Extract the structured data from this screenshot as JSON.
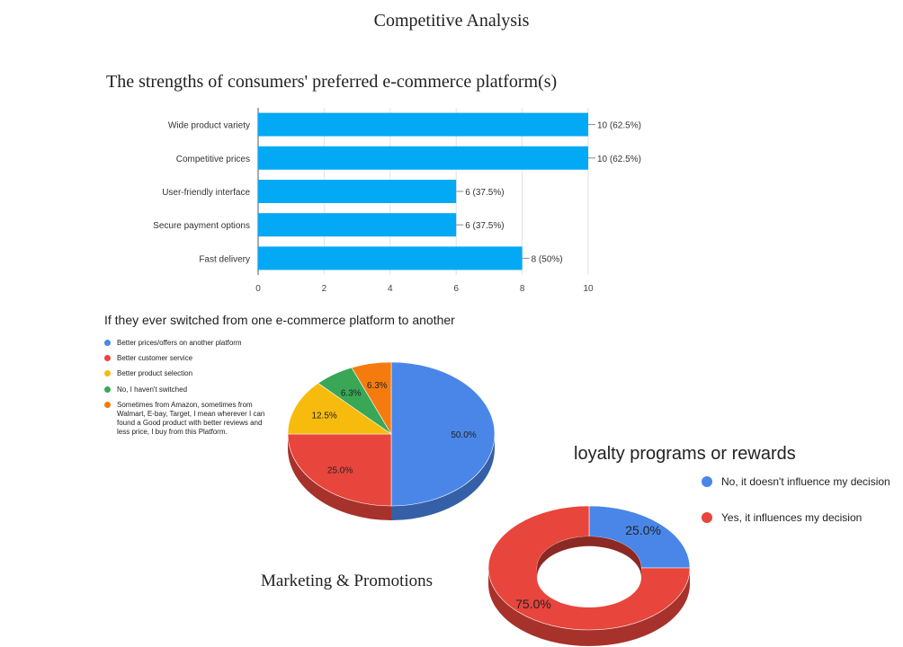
{
  "page": {
    "title": "Competitive Analysis",
    "section_title": "Marketing & Promotions"
  },
  "chart_data": [
    {
      "type": "bar",
      "orientation": "horizontal",
      "title": "The strengths of consumers' preferred e-commerce platform(s)",
      "categories": [
        "Wide product variety",
        "Competitive prices",
        "User-friendly interface",
        "Secure payment options",
        "Fast delivery"
      ],
      "values": [
        10,
        10,
        6,
        6,
        8
      ],
      "data_labels": [
        "10 (62.5%)",
        "10 (62.5%)",
        "6 (37.5%)",
        "6 (37.5%)",
        "8 (50%)"
      ],
      "xlim": [
        0,
        10
      ],
      "xticks": [
        "0",
        "2",
        "4",
        "6",
        "8",
        "10"
      ],
      "grid": true,
      "color": "#03a9f4"
    },
    {
      "type": "pie",
      "style": "3d",
      "title": "If they ever switched from one e-commerce platform to another",
      "legend_position": "left",
      "slices": [
        {
          "label": "Better prices/offers on another platform",
          "value": 50.0,
          "display": "50.0%",
          "color": "#4a86e8"
        },
        {
          "label": "Better customer service",
          "value": 25.0,
          "display": "25.0%",
          "color": "#e8453c"
        },
        {
          "label": "Better product selection",
          "value": 12.5,
          "display": "12.5%",
          "color": "#f6bb0c"
        },
        {
          "label": "No, I haven't switched",
          "value": 6.25,
          "display": "6.3%",
          "color": "#3aa757"
        },
        {
          "label": "Sometimes from Amazon, sometimes from Walmart, E-bay, Target, I mean wherever I can found a Good product with better reviews and less price, I buy from this Platform.",
          "value": 6.25,
          "display": "6.3%",
          "color": "#f57b0f"
        }
      ]
    },
    {
      "type": "pie",
      "style": "3d-donut",
      "title": "loyalty programs or rewards",
      "legend_position": "right",
      "slices": [
        {
          "label": "No, it doesn't influence my decision",
          "value": 25.0,
          "display": "25.0%",
          "color": "#4a86e8"
        },
        {
          "label": "Yes, it influences my decision",
          "value": 75.0,
          "display": "75.0%",
          "color": "#e8453c"
        }
      ]
    }
  ]
}
